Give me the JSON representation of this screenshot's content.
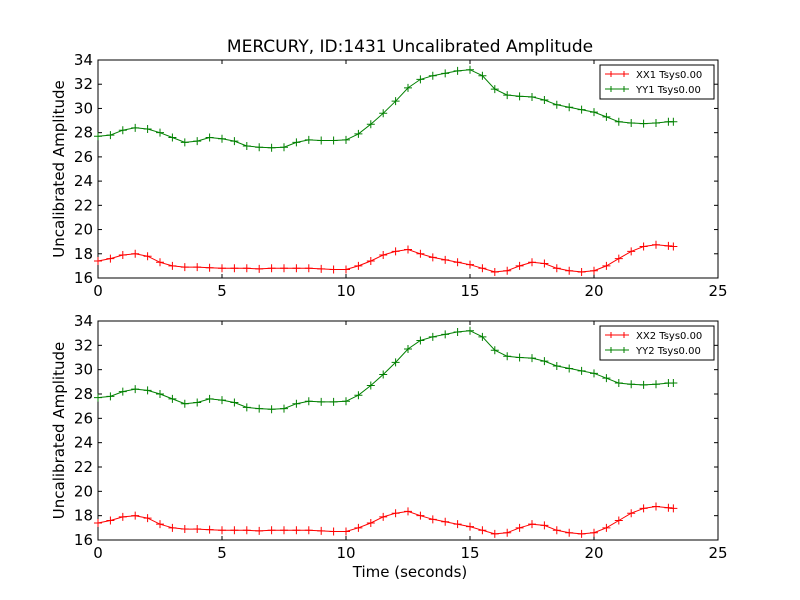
{
  "figure": {
    "title": "MERCURY, ID:1431 Uncalibrated Amplitude",
    "xlabel": "Time (seconds)"
  },
  "colors": {
    "red": "#ff0000",
    "green": "#008000",
    "axis": "#000000"
  },
  "chart_data": [
    {
      "type": "line",
      "marker": "plus",
      "title": "MERCURY, ID:1431 Uncalibrated Amplitude",
      "xlabel": "",
      "ylabel": "Uncalibrated Amplitude",
      "xlim": [
        0,
        25
      ],
      "ylim": [
        16,
        34
      ],
      "xticks": [
        0,
        5,
        10,
        15,
        20,
        25
      ],
      "yticks": [
        16,
        18,
        20,
        22,
        24,
        26,
        28,
        30,
        32,
        34
      ],
      "grid": false,
      "legend_position": "top-right",
      "x": [
        0,
        0.5,
        1,
        1.5,
        2,
        2.5,
        3,
        3.5,
        4,
        4.5,
        5,
        5.5,
        6,
        6.5,
        7,
        7.5,
        8,
        8.5,
        9,
        9.5,
        10,
        10.5,
        11,
        11.5,
        12,
        12.5,
        13,
        13.5,
        14,
        14.5,
        15,
        15.5,
        16,
        16.5,
        17,
        17.5,
        18,
        18.5,
        19,
        19.5,
        20,
        20.5,
        21,
        21.5,
        22,
        22.5,
        23,
        23.2
      ],
      "series": [
        {
          "name": "XX1 Tsys0.00",
          "color": "#ff0000",
          "values": [
            17.4,
            17.6,
            17.9,
            18.0,
            17.8,
            17.3,
            17.0,
            16.9,
            16.9,
            16.85,
            16.8,
            16.8,
            16.8,
            16.75,
            16.8,
            16.8,
            16.8,
            16.8,
            16.75,
            16.7,
            16.7,
            17.0,
            17.4,
            17.9,
            18.2,
            18.35,
            18.0,
            17.7,
            17.5,
            17.3,
            17.1,
            16.8,
            16.5,
            16.6,
            17.0,
            17.3,
            17.2,
            16.8,
            16.6,
            16.5,
            16.6,
            17.0,
            17.6,
            18.2,
            18.6,
            18.75,
            18.65,
            18.6
          ]
        },
        {
          "name": "YY1 Tsys0.00",
          "color": "#008000",
          "values": [
            27.7,
            27.8,
            28.2,
            28.4,
            28.3,
            28.0,
            27.6,
            27.2,
            27.3,
            27.6,
            27.5,
            27.3,
            26.9,
            26.8,
            26.75,
            26.8,
            27.2,
            27.4,
            27.35,
            27.35,
            27.4,
            27.9,
            28.7,
            29.6,
            30.6,
            31.7,
            32.4,
            32.7,
            32.9,
            33.1,
            33.2,
            32.7,
            31.6,
            31.1,
            31.0,
            30.95,
            30.7,
            30.3,
            30.1,
            29.9,
            29.7,
            29.3,
            28.9,
            28.8,
            28.75,
            28.8,
            28.9,
            28.9
          ]
        }
      ]
    },
    {
      "type": "line",
      "marker": "plus",
      "title": "",
      "xlabel": "Time (seconds)",
      "ylabel": "Uncalibrated Amplitude",
      "xlim": [
        0,
        25
      ],
      "ylim": [
        16,
        34
      ],
      "xticks": [
        0,
        5,
        10,
        15,
        20,
        25
      ],
      "yticks": [
        16,
        18,
        20,
        22,
        24,
        26,
        28,
        30,
        32,
        34
      ],
      "grid": false,
      "legend_position": "top-right",
      "x": [
        0,
        0.5,
        1,
        1.5,
        2,
        2.5,
        3,
        3.5,
        4,
        4.5,
        5,
        5.5,
        6,
        6.5,
        7,
        7.5,
        8,
        8.5,
        9,
        9.5,
        10,
        10.5,
        11,
        11.5,
        12,
        12.5,
        13,
        13.5,
        14,
        14.5,
        15,
        15.5,
        16,
        16.5,
        17,
        17.5,
        18,
        18.5,
        19,
        19.5,
        20,
        20.5,
        21,
        21.5,
        22,
        22.5,
        23,
        23.2
      ],
      "series": [
        {
          "name": "XX2 Tsys0.00",
          "color": "#ff0000",
          "values": [
            17.4,
            17.6,
            17.9,
            18.0,
            17.8,
            17.3,
            17.0,
            16.9,
            16.9,
            16.85,
            16.8,
            16.8,
            16.8,
            16.75,
            16.8,
            16.8,
            16.8,
            16.8,
            16.75,
            16.7,
            16.7,
            17.0,
            17.4,
            17.9,
            18.2,
            18.35,
            18.0,
            17.7,
            17.5,
            17.3,
            17.1,
            16.8,
            16.5,
            16.6,
            17.0,
            17.3,
            17.2,
            16.8,
            16.6,
            16.5,
            16.6,
            17.0,
            17.6,
            18.2,
            18.6,
            18.75,
            18.65,
            18.6
          ]
        },
        {
          "name": "YY2 Tsys0.00",
          "color": "#008000",
          "values": [
            27.7,
            27.8,
            28.2,
            28.4,
            28.3,
            28.0,
            27.6,
            27.2,
            27.3,
            27.6,
            27.5,
            27.3,
            26.9,
            26.8,
            26.75,
            26.8,
            27.2,
            27.4,
            27.35,
            27.35,
            27.4,
            27.9,
            28.7,
            29.6,
            30.6,
            31.7,
            32.4,
            32.7,
            32.9,
            33.1,
            33.2,
            32.7,
            31.6,
            31.1,
            31.0,
            30.95,
            30.7,
            30.3,
            30.1,
            29.9,
            29.7,
            29.3,
            28.9,
            28.8,
            28.75,
            28.8,
            28.9,
            28.9
          ]
        }
      ]
    }
  ]
}
